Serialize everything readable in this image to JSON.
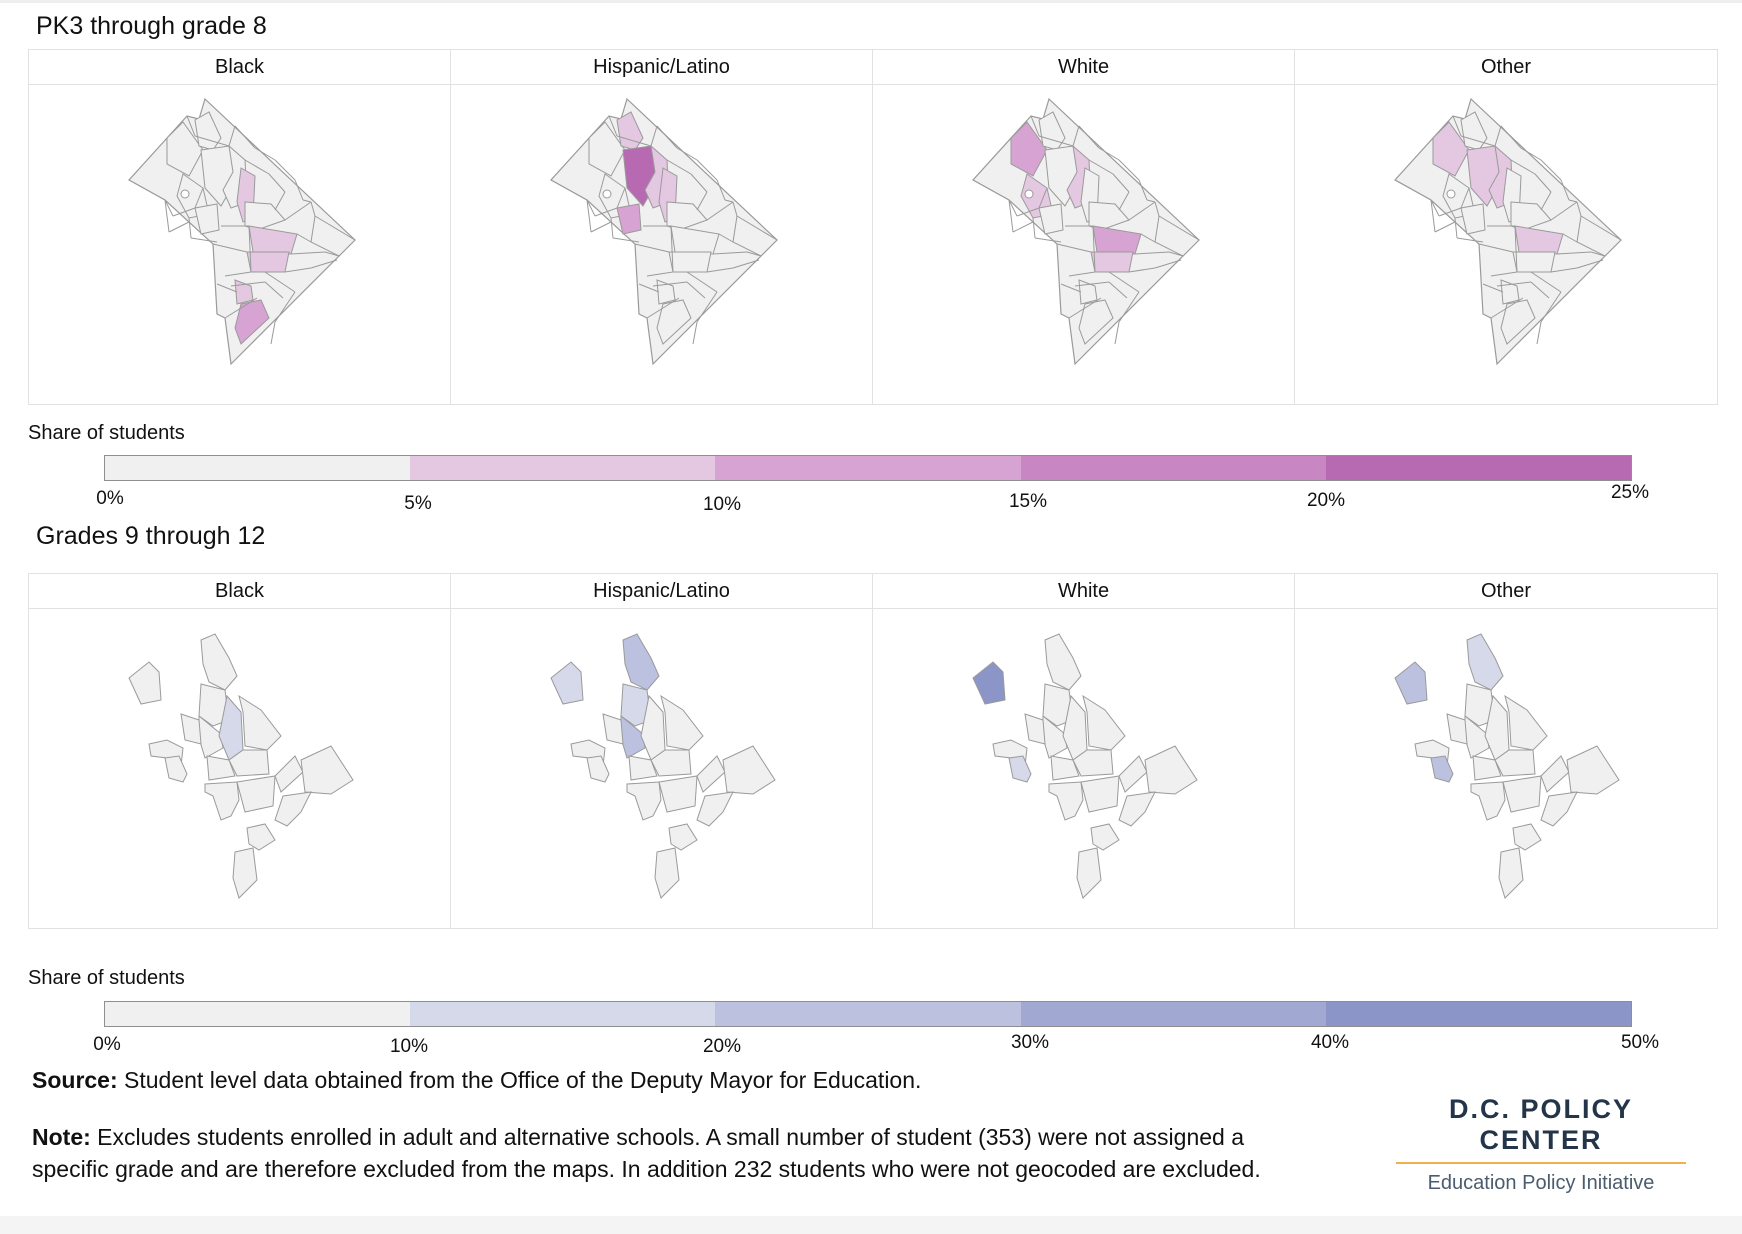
{
  "colors": {
    "base": "#f0f0f0",
    "outline": "#9a9a9a",
    "purple_scale": [
      "#f0f0f0",
      "#e4c7e0",
      "#d7a3d2",
      "#c886c3",
      "#b76ab1"
    ],
    "blue_scale": [
      "#f0f0f0",
      "#d5d9e9",
      "#bbc1de",
      "#a1a9d2",
      "#8b95c7"
    ],
    "brand_accent": "#f0b14a"
  },
  "top": {
    "title": "PK3 through grade 8",
    "panels": [
      {
        "label": "Black",
        "highlights": [
          {
            "region": 6,
            "level": 1
          },
          {
            "region": 8,
            "level": 1
          },
          {
            "region": 9,
            "level": 1
          },
          {
            "region": 11,
            "level": 1
          },
          {
            "region": 12,
            "level": 2
          }
        ]
      },
      {
        "label": "Hispanic/Latino",
        "highlights": [
          {
            "region": 2,
            "level": 4
          },
          {
            "region": 1,
            "level": 1
          },
          {
            "region": 4,
            "level": 2
          },
          {
            "region": 5,
            "level": 1
          },
          {
            "region": 6,
            "level": 1
          }
        ]
      },
      {
        "label": "White",
        "highlights": [
          {
            "region": 0,
            "level": 2
          },
          {
            "region": 3,
            "level": 1
          },
          {
            "region": 5,
            "level": 1
          },
          {
            "region": 8,
            "level": 2
          },
          {
            "region": 9,
            "level": 1
          }
        ]
      },
      {
        "label": "Other",
        "highlights": [
          {
            "region": 0,
            "level": 1
          },
          {
            "region": 2,
            "level": 1
          },
          {
            "region": 5,
            "level": 1
          },
          {
            "region": 8,
            "level": 1
          }
        ]
      }
    ],
    "legend": {
      "title": "Share of students",
      "ticks": [
        "0%",
        "5%",
        "10%",
        "15%",
        "20%",
        "25%"
      ]
    }
  },
  "bottom": {
    "title": "Grades 9 through 12",
    "panels": [
      {
        "label": "Black",
        "highlights": [
          {
            "region": 3,
            "level": 1
          }
        ]
      },
      {
        "label": "Hispanic/Latino",
        "highlights": [
          {
            "region": 0,
            "level": 1
          },
          {
            "region": 1,
            "level": 2
          },
          {
            "region": 2,
            "level": 1
          },
          {
            "region": 4,
            "level": 2
          }
        ]
      },
      {
        "label": "White",
        "highlights": [
          {
            "region": 0,
            "level": 4
          },
          {
            "region": 6,
            "level": 1
          }
        ]
      },
      {
        "label": "Other",
        "highlights": [
          {
            "region": 0,
            "level": 2
          },
          {
            "region": 6,
            "level": 2
          },
          {
            "region": 1,
            "level": 1
          }
        ]
      }
    ],
    "legend": {
      "title": "Share of students",
      "ticks": [
        "0%",
        "10%",
        "20%",
        "30%",
        "40%",
        "50%"
      ]
    }
  },
  "footer": {
    "source_label": "Source:",
    "source_text": "Student level data obtained from the Office of the Deputy Mayor for Education.",
    "note_label": "Note:",
    "note_text": "Excludes students enrolled in adult and alternative schools. A small number of student (353) were not assigned a specific grade and are therefore excluded from the maps. In addition 232 students who were not geocoded are excluded."
  },
  "brand": {
    "name": "D.C. POLICY CENTER",
    "subtitle": "Education Policy Initiative"
  }
}
